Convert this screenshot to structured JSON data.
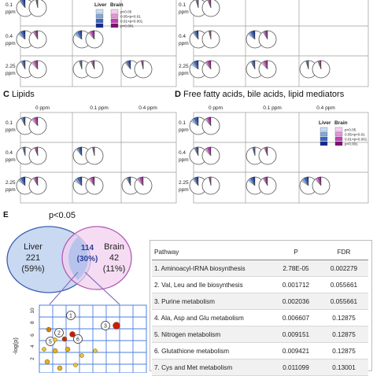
{
  "panels": {
    "top_left": {
      "letter": "",
      "title": "",
      "col_headers": [],
      "row_labels": [
        {
          "value": "0.1",
          "unit": "ppm"
        },
        {
          "value": "0.4",
          "unit": "ppm"
        },
        {
          "value": "2.25",
          "unit": "ppm"
        }
      ]
    },
    "top_right": {
      "letter": "",
      "title": ""
    },
    "C": {
      "letter": "C",
      "title": "Lipids",
      "col_headers": [
        "0 ppm",
        "0.1 ppm",
        "0.4 ppm"
      ],
      "row_labels": [
        {
          "value": "0.1",
          "unit": "ppm"
        },
        {
          "value": "0.4",
          "unit": "ppm"
        },
        {
          "value": "2.25",
          "unit": "ppm"
        }
      ]
    },
    "D": {
      "letter": "D",
      "title": "Free fatty acids, bile acids, lipid mediators",
      "col_headers": [
        "0 ppm",
        "0.1 ppm",
        "0.4 ppm"
      ],
      "row_labels": [
        {
          "value": "0.1",
          "unit": "ppm"
        },
        {
          "value": "0.4",
          "unit": "ppm"
        },
        {
          "value": "2.25",
          "unit": "ppm"
        }
      ]
    }
  },
  "legend": {
    "liver": "Liver",
    "brain": "Brain",
    "levels": [
      "p<0.05",
      "0.05<p<0.01",
      "0.01<p<0.001",
      "p<0.001"
    ],
    "liver_colors": [
      "#c9dcf2",
      "#7fa8e0",
      "#3a66c4",
      "#142a8c"
    ],
    "brain_colors": [
      "#f4d0f0",
      "#e890de",
      "#c640b8",
      "#7a1270"
    ]
  },
  "venn": {
    "letter": "E",
    "title": "p<0.05",
    "liver_label": "Liver",
    "liver_count": "221",
    "liver_pct": "(59%)",
    "brain_label": "Brain",
    "brain_count": "42",
    "brain_pct": "(11%)",
    "overlap_count": "114",
    "overlap_pct": "(30%)",
    "liver_color": "#c8d9f1",
    "brain_color": "#f1d0ee",
    "overlap_color": "#b7c3ec"
  },
  "scatter": {
    "ylabel": "-log(p)",
    "y_ticks": [
      "10",
      "8",
      "6",
      "4",
      "2"
    ],
    "markers": [
      "1",
      "2",
      "3",
      "5",
      "6"
    ],
    "grid_color": "#4a7fe0"
  },
  "table": {
    "headers": [
      "Pathway",
      "P",
      "FDR"
    ],
    "rows": [
      [
        "1. Aminoacyl-tRNA biosynthesis",
        "2.78E-05",
        "0.002279"
      ],
      [
        "2. Val, Leu and Ile biosynthesis",
        "0.001712",
        "0.055661"
      ],
      [
        "3. Purine metabolism",
        "0.002036",
        "0.055661"
      ],
      [
        "4. Ala, Asp and Glu metabolism",
        "0.006607",
        "0.12875"
      ],
      [
        "5. Nitrogen metabolism",
        "0.009151",
        "0.12875"
      ],
      [
        "6. Glutathione metabolism",
        "0.009421",
        "0.12875"
      ],
      [
        "7. Cys and Met metabolism",
        "0.011099",
        "0.13001"
      ]
    ]
  }
}
